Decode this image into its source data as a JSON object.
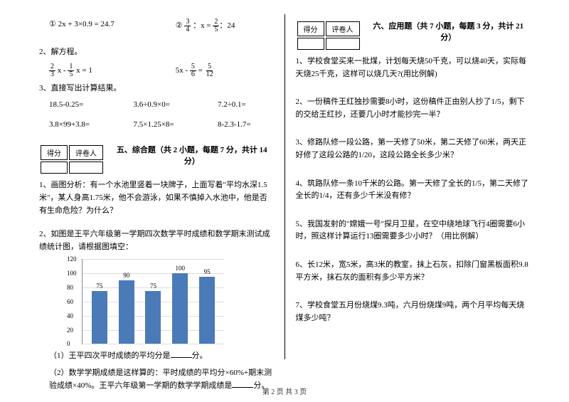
{
  "left": {
    "eq1_a": "① 2x + 3×0.9 = 24.7",
    "eq1_b_pre": "② ",
    "eq1_b_f1n": "3",
    "eq1_b_f1d": "4",
    "eq1_b_mid": " ：x = ",
    "eq1_b_f2n": "2",
    "eq1_b_f2d": "5",
    "eq1_b_post": "：24",
    "q2": "2、解方程。",
    "q2a_f1n": "2",
    "q2a_f1d": "3",
    "q2a_mid": " x - ",
    "q2a_f2n": "1",
    "q2a_f2d": "5",
    "q2a_end": " x = 1",
    "q2b_pre": "5x - ",
    "q2b_f1n": "5",
    "q2b_f1d": "6",
    "q2b_mid": " = ",
    "q2b_f2n": "5",
    "q2b_f2d": "12",
    "q3": "3、直接写出计算结果。",
    "q3r1a": "18.5-0.25=",
    "q3r1b": "3.6÷0.9×0=",
    "q3r1c": "7.2÷0.1=",
    "q3r2a": "3.8×99+3.8=",
    "q3r2b": "7.5×1.25×8=",
    "q3r2c": "8-2.3-1.7=",
    "score_a": "得分",
    "score_b": "评卷人",
    "sec5": "五、综合题（共 2 小题，每题 7 分，共计 14 分）",
    "s5q1": "1、画图分析：有一个水池里竖着一块牌子，上面写着\"平均水深1.5米\"，某人身高1.75米，他不会游泳，如果不慎掉入水池中，他是否有生命危险？为什么？",
    "s5q2": "2、如图是王平六年级第一学期四次数学平时成绩和数学期末测试成绩统计图，请根据图填空：",
    "chart": {
      "values": [
        75,
        90,
        75,
        100,
        95
      ],
      "color": "#4a7ab8",
      "ymax": 120,
      "ystep": 20,
      "bg": "#ffffff",
      "grid": "#dddddd"
    },
    "s5a1_pre": "（1）王平四次平时成绩的平均分是",
    "s5a1_post": "分。",
    "s5a2_pre": "（2）数学学期成绩是这样算的：平时成绩的平均分×60%+期末测验成绩×40%。王平六年级第一学期的数学学期成绩是",
    "s5a2_post": "分。"
  },
  "right": {
    "score_a": "得分",
    "score_b": "评卷人",
    "sec6": "六、应用题（共 7 小题，每题 3 分，共计 21 分）",
    "q1": "1、学校食堂买来一批煤，计划每天烧50千克，可以烧40天，实际每天烧25千克，这样可以烧几天?(用比例解)",
    "q2": "2、一份稿件王红独抄需要8小时，这份稿件正由别人抄了1/5，剩下的交给王红抄，还要几小时才能抄完一半？",
    "q3": "3、修路队修一段公路，第一天修了50米，第二天修了60米，两天正好修了这段公路的1/20，这段公路全长多少米？",
    "q4": "4、筑路队修一条10千米的公路。第一天修了全长的1/5，第二天修了全长的1/4，还有多少千米没有修？",
    "q5": "5、我国发射的\"嫦娥一号\"探月卫星，在空中绕地球飞行4圈需要6小时，照这样计算运行13圈需要多少小时？（用比例解）",
    "q6": "6、长12米，宽5米，高3米的教室，抹上石灰，扣除门窗黑板面积9.8平方米，抹石灰的面积有多少平方米？",
    "q7": "7、学校食堂五月份烧煤9.3吨，六月份烧煤9吨，两个月平均每天烧煤多少吨？"
  },
  "footer": "第 2 页 共 3 页"
}
